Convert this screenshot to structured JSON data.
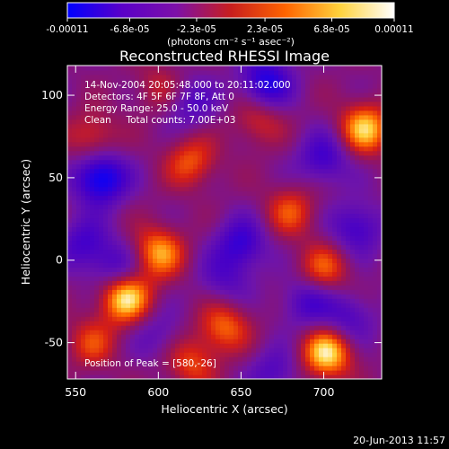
{
  "chart_data": {
    "type": "heatmap",
    "title": "Reconstructed RHESSI Image",
    "xlabel": "Heliocentric X (arcsec)",
    "ylabel": "Heliocentric Y (arcsec)",
    "xlim": [
      545,
      735
    ],
    "ylim": [
      -72,
      118
    ],
    "x_ticks": [
      550,
      600,
      650,
      700
    ],
    "y_ticks": [
      -50,
      0,
      50,
      100
    ],
    "colorbar": {
      "range": [
        -0.00011,
        0.00011
      ],
      "ticks": [
        {
          "value": -0.00011,
          "label": "-0.00011"
        },
        {
          "value": -6.8e-05,
          "label": "-6.8e-05"
        },
        {
          "value": -2.3e-05,
          "label": "-2.3e-05"
        },
        {
          "value": 2.3e-05,
          "label": "2.3e-05"
        },
        {
          "value": 6.8e-05,
          "label": "6.8e-05"
        },
        {
          "value": 0.00011,
          "label": "0.00011"
        }
      ],
      "units_label": "(photons cm⁻² s⁻¹ asec⁻²)",
      "colors": [
        "#0000ff",
        "#5a00c8",
        "#7d10a8",
        "#c81e1e",
        "#ff6400",
        "#ffd23c",
        "#ffffff"
      ]
    },
    "annotations": [
      "14-Nov-2004 20:05:48.000 to 20:11:02.000",
      "Detectors: 4F 5F 6F 7F 8F, Att 0",
      "Energy Range: 25.0 - 50.0 keV",
      "Clean     Total counts: 7.00E+03"
    ],
    "peak_label": "Position of Peak = [580,-26]",
    "peak": [
      580,
      -26
    ],
    "blobs": [
      {
        "x": 580,
        "y": -22,
        "amp": 1.0
      },
      {
        "x": 702,
        "y": -56,
        "amp": 0.95
      },
      {
        "x": 725,
        "y": 80,
        "amp": 0.85
      },
      {
        "x": 600,
        "y": 5,
        "amp": 0.75
      },
      {
        "x": 620,
        "y": 60,
        "amp": 0.55
      },
      {
        "x": 640,
        "y": -40,
        "amp": 0.6
      },
      {
        "x": 560,
        "y": -50,
        "amp": 0.45
      },
      {
        "x": 680,
        "y": 30,
        "amp": 0.5
      },
      {
        "x": 700,
        "y": -5,
        "amp": 0.55
      },
      {
        "x": 560,
        "y": 75,
        "amp": 0.45
      },
      {
        "x": 660,
        "y": 85,
        "amp": 0.4
      },
      {
        "x": 620,
        "y": -62,
        "amp": 0.5
      },
      {
        "x": 600,
        "y": 105,
        "amp": 0.3
      },
      {
        "x": 565,
        "y": 50,
        "amp": -0.95
      },
      {
        "x": 665,
        "y": 108,
        "amp": -0.75
      },
      {
        "x": 700,
        "y": 62,
        "amp": -0.55
      },
      {
        "x": 575,
        "y": -5,
        "amp": -0.5
      },
      {
        "x": 650,
        "y": 10,
        "amp": -0.6
      },
      {
        "x": 720,
        "y": 20,
        "amp": -0.55
      },
      {
        "x": 690,
        "y": -25,
        "amp": -0.5
      },
      {
        "x": 715,
        "y": -35,
        "amp": -0.45
      },
      {
        "x": 620,
        "y": 95,
        "amp": -0.4
      },
      {
        "x": 555,
        "y": 10,
        "amp": -0.5
      },
      {
        "x": 640,
        "y": -12,
        "amp": -0.35
      },
      {
        "x": 670,
        "y": -68,
        "amp": -0.4
      },
      {
        "x": 600,
        "y": -45,
        "amp": -0.3
      }
    ]
  },
  "footer": {
    "timestamp": "20-Jun-2013 11:57"
  }
}
